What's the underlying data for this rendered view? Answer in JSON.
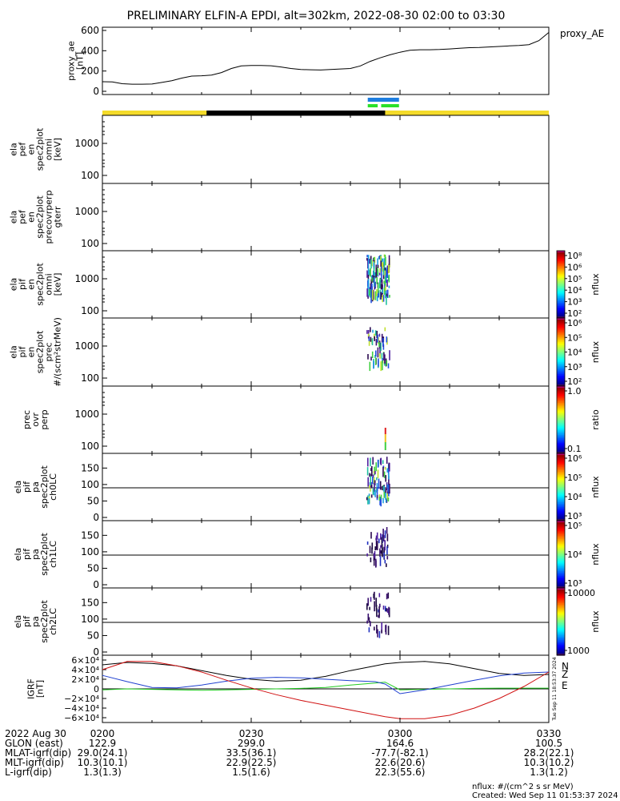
{
  "title": "PRELIMINARY ELFIN-A EPDI, alt=302km, 2022-08-30 02:00 to 03:30",
  "chart_data": [
    {
      "name": "proxy_ae",
      "type": "line",
      "ylabel": [
        "proxy_ae",
        "[nT]"
      ],
      "legend": "proxy_AE",
      "yticks": [
        "600",
        "400",
        "200",
        "0"
      ],
      "ylim": [
        0,
        600
      ],
      "x_minutes": [
        0,
        2,
        4,
        6,
        8,
        10,
        12,
        14,
        16,
        18,
        20,
        22,
        24,
        26,
        28,
        30,
        32,
        34,
        36,
        38,
        40,
        42,
        44,
        46,
        48,
        50,
        52,
        54,
        56,
        58,
        60,
        62,
        64,
        66,
        68,
        70,
        72,
        74,
        76,
        78,
        80,
        82,
        84,
        86,
        88,
        90
      ],
      "values": [
        95,
        92,
        75,
        70,
        70,
        72,
        88,
        105,
        130,
        150,
        153,
        160,
        185,
        225,
        250,
        255,
        255,
        252,
        240,
        225,
        215,
        212,
        210,
        215,
        220,
        225,
        250,
        295,
        330,
        360,
        385,
        405,
        410,
        410,
        412,
        418,
        425,
        430,
        432,
        437,
        442,
        448,
        452,
        460,
        500,
        580
      ]
    },
    {
      "name": "spacecraft_status_bars",
      "type": "bar",
      "bars": [
        {
          "color": "#f4db2a",
          "x_minutes": [
            0,
            90
          ]
        },
        {
          "color": "#000000",
          "x_minutes": [
            21,
            57
          ]
        },
        {
          "color": "#1e7ee0",
          "x_minutes": [
            53.5,
            59.8
          ]
        },
        {
          "color": "#2ae02a",
          "x_minutes": [
            53.5,
            55.5
          ]
        },
        {
          "color": "#2ae02a",
          "x_minutes": [
            56.2,
            59.8
          ]
        }
      ]
    },
    {
      "name": "ela_pef_en_spec2plot_omni",
      "type": "heatmap",
      "ylabel": [
        "ela",
        "pef",
        "en",
        "spec2plot",
        "omni",
        "[keV]"
      ],
      "yscale": "log",
      "yticks": [
        "1000",
        "100"
      ],
      "colorbar": null
    },
    {
      "name": "ela_pef_en_spec2plot_precovrperp_gterr",
      "type": "heatmap",
      "ylabel": [
        "ela",
        "pef",
        "en",
        "spec2plot",
        "precovrperp",
        "gterr"
      ],
      "yscale": "log",
      "yticks": [
        "1000",
        "100"
      ],
      "colorbar": null
    },
    {
      "name": "ela_pif_en_spec2plot_omni",
      "type": "heatmap",
      "ylabel": [
        "ela",
        "pif",
        "en",
        "spec2plot",
        "omni",
        "[keV]"
      ],
      "yscale": "log",
      "yticks": [
        "1000",
        "100"
      ],
      "colorbar": {
        "label": "nflux",
        "ticks": [
          "10⁸",
          "10⁶",
          "10⁵",
          "10⁴",
          "10³",
          "10²"
        ]
      }
    },
    {
      "name": "ela_pif_en_spec2plot_prec",
      "type": "heatmap",
      "ylabel": [
        "ela",
        "pif",
        "en",
        "spec2plot",
        "prec",
        "#/(scm²strMeV)"
      ],
      "yscale": "log",
      "yticks": [
        "1000",
        "100"
      ],
      "colorbar": {
        "label": "nflux",
        "ticks": [
          "10⁶",
          "10⁵",
          "10⁴",
          "10³",
          "10²"
        ]
      }
    },
    {
      "name": "prec_ovr_perp",
      "type": "heatmap",
      "ylabel": [
        "prec",
        "ovr",
        "perp"
      ],
      "yscale": "log",
      "yticks": [
        "1000",
        "100"
      ],
      "colorbar": {
        "label": "ratio",
        "ticks": [
          "1.0",
          "0.1"
        ]
      }
    },
    {
      "name": "ela_pif_pa_spec2plot_ch0LC",
      "type": "heatmap",
      "ylabel": [
        "ela",
        "pif",
        "pa",
        "spec2plot",
        "ch0LC"
      ],
      "yticks": [
        "150",
        "100",
        "50",
        "0"
      ],
      "ylim": [
        0,
        180
      ],
      "colorbar": {
        "label": "nflux",
        "ticks": [
          "10⁶",
          "10⁵",
          "10⁴",
          "10³"
        ]
      }
    },
    {
      "name": "ela_pif_pa_spec2plot_ch1LC",
      "type": "heatmap",
      "ylabel": [
        "ela",
        "pif",
        "pa",
        "spec2plot",
        "ch1LC"
      ],
      "yticks": [
        "150",
        "100",
        "50",
        "0"
      ],
      "ylim": [
        0,
        180
      ],
      "colorbar": {
        "label": "nflux",
        "ticks": [
          "10⁵",
          "10⁴",
          "10³"
        ]
      }
    },
    {
      "name": "ela_pif_pa_spec2plot_ch2LC",
      "type": "heatmap",
      "ylabel": [
        "ela",
        "pif",
        "pa",
        "spec2plot",
        "ch2LC"
      ],
      "yticks": [
        "150",
        "100",
        "50",
        "0"
      ],
      "ylim": [
        0,
        180
      ],
      "colorbar": {
        "label": "nflux",
        "ticks": [
          "10000",
          "1000"
        ]
      }
    },
    {
      "name": "igrf",
      "type": "line",
      "ylabel": [
        "IGRF",
        "[nT]"
      ],
      "yticks": [
        "6×10⁴",
        "4×10⁴",
        "2×10⁴",
        "0",
        "−2×10⁴",
        "−4×10⁴",
        "−6×10⁴"
      ],
      "ylim": [
        -70000,
        70000
      ],
      "x_minutes": [
        0,
        5,
        10,
        15,
        20,
        25,
        30,
        35,
        40,
        45,
        50,
        55,
        57,
        60,
        65,
        70,
        75,
        80,
        85,
        90
      ],
      "series": [
        {
          "name": "N",
          "color": "#000000",
          "values": [
            50000,
            55000,
            53000,
            48000,
            38000,
            28000,
            20000,
            16000,
            18000,
            26000,
            38000,
            48000,
            52000,
            55000,
            57000,
            52000,
            42000,
            32000,
            28000,
            30000
          ]
        },
        {
          "name": "E",
          "color": "#22cc22",
          "values": [
            -2000,
            0,
            -1000,
            -2000,
            -3000,
            -2000,
            -1000,
            0,
            1000,
            3000,
            8000,
            12000,
            14000,
            -2000,
            -1000,
            0,
            1000,
            1500,
            1500,
            1500
          ]
        },
        {
          "name": "Z",
          "color": "#2040d0",
          "values": [
            28000,
            15000,
            3000,
            2000,
            8000,
            16000,
            22000,
            24000,
            23000,
            20000,
            17000,
            15000,
            10000,
            -10000,
            -2000,
            8000,
            18000,
            27000,
            33000,
            35000
          ]
        },
        {
          "name": "",
          "color": "#d01010",
          "values": [
            40000,
            57000,
            57000,
            48000,
            35000,
            18000,
            2000,
            -12000,
            -24000,
            -34000,
            -44000,
            -54000,
            -58000,
            -62000,
            -62000,
            -55000,
            -40000,
            -20000,
            5000,
            35000
          ]
        }
      ],
      "legend": [
        "N",
        "Z",
        "E"
      ],
      "sidebar_text": "Tue Sep 11 18:53:37 2024"
    }
  ],
  "footer": {
    "rows": [
      {
        "label": "2022 Aug 30",
        "values": [
          "0200",
          "0230",
          "0300",
          "0330"
        ]
      },
      {
        "label": "GLON (east)",
        "values": [
          "122.9",
          "299.0",
          "164.6",
          "100.5"
        ]
      },
      {
        "label": "MLAT-igrf(dip)",
        "values": [
          "29.0(24.1)",
          "33.5(36.1)",
          "-77.7(-82.1)",
          "28.2(22.1)"
        ]
      },
      {
        "label": "MLT-igrf(dip)",
        "values": [
          "10.3(10.1)",
          "22.9(22.5)",
          "22.6(20.6)",
          "10.3(10.2)"
        ]
      },
      {
        "label": "L-igrf(dip)",
        "values": [
          "1.3(1.3)",
          "1.5(1.6)",
          "22.3(55.6)",
          "1.3(1.2)"
        ]
      }
    ],
    "units_note": "nflux: #/(cm^2 s sr MeV)",
    "created": "Created: Wed Sep 11 01:53:37 2024"
  }
}
